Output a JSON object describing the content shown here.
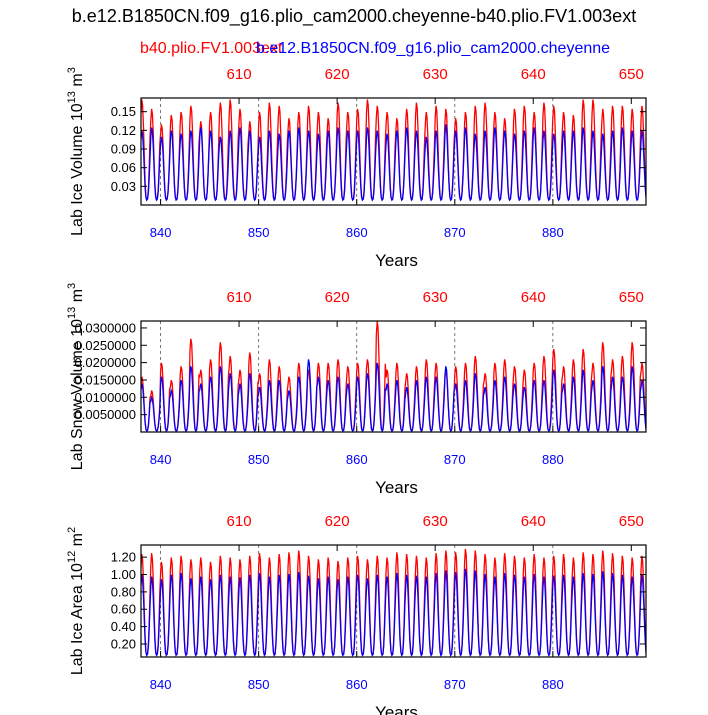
{
  "figure": {
    "title": "b.e12.B1850CN.f09_g16.plio_cam2000.cheyenne-b40.plio.FV1.003ext",
    "legend_red": "b40.plio.FV1.003ext",
    "legend_blue": "b.e12.B1850CN.f09_g16.plio_cam2000.cheyenne"
  },
  "colors": {
    "series_red": "#ff0000",
    "series_blue": "#0000ff",
    "axis": "#000000",
    "dashed_lines": "#555555"
  },
  "chart_data": [
    {
      "type": "line",
      "ylabel": "Lab Ice Volume 10",
      "ylabel_exp": "13",
      "ylabel_unit": " m",
      "ylabel_unit_exp": "3",
      "xlabel": "Years",
      "ylim": [
        0.0,
        0.172
      ],
      "yticks": [
        "0.03",
        "0.06",
        "0.09",
        "0.12",
        "0.15"
      ],
      "ytick_values": [
        0.03,
        0.06,
        0.09,
        0.12,
        0.15
      ],
      "bottom_axis": {
        "range": [
          838,
          889.5
        ],
        "ticks": [
          840,
          850,
          860,
          870,
          880
        ],
        "labels": [
          "840",
          "850",
          "860",
          "870",
          "880"
        ]
      },
      "top_axis": {
        "range": [
          600,
          651.5
        ],
        "ticks": [
          610,
          620,
          630,
          640,
          650
        ],
        "labels": [
          "610",
          "620",
          "630",
          "640",
          "650"
        ]
      },
      "dashed_lines_at": [
        840,
        850,
        860,
        870,
        880
      ],
      "series": [
        {
          "name": "b40.plio.FV1.003ext",
          "color": "#ff0000",
          "start_year": 600,
          "minimum": 0.008,
          "annual_peaks": [
            0.17,
            0.155,
            0.13,
            0.145,
            0.15,
            0.16,
            0.135,
            0.15,
            0.165,
            0.17,
            0.155,
            0.135,
            0.15,
            0.165,
            0.16,
            0.14,
            0.15,
            0.16,
            0.15,
            0.14,
            0.165,
            0.15,
            0.155,
            0.17,
            0.16,
            0.15,
            0.14,
            0.155,
            0.165,
            0.15,
            0.16,
            0.155,
            0.14,
            0.15,
            0.16,
            0.165,
            0.15,
            0.14,
            0.155,
            0.16,
            0.15,
            0.165,
            0.16,
            0.15,
            0.145,
            0.17,
            0.17,
            0.155,
            0.16,
            0.16,
            0.155,
            0.16
          ]
        },
        {
          "name": "b.e12.B1850CN.f09_g16.plio_cam2000.cheyenne",
          "color": "#0000ff",
          "start_year": 838,
          "minimum": 0.008,
          "annual_peaks": [
            0.12,
            0.125,
            0.11,
            0.12,
            0.115,
            0.12,
            0.125,
            0.12,
            0.11,
            0.12,
            0.125,
            0.12,
            0.11,
            0.12,
            0.115,
            0.12,
            0.125,
            0.12,
            0.115,
            0.12,
            0.125,
            0.12,
            0.12,
            0.125,
            0.12,
            0.115,
            0.12,
            0.125,
            0.12,
            0.11,
            0.12,
            0.13,
            0.12,
            0.125,
            0.115,
            0.12,
            0.125,
            0.12,
            0.115,
            0.12,
            0.125,
            0.12,
            0.115,
            0.12,
            0.12,
            0.125,
            0.12,
            0.115,
            0.12,
            0.125,
            0.12,
            0.12
          ]
        }
      ]
    },
    {
      "type": "line",
      "ylabel": "Lab Snow Volume 10",
      "ylabel_exp": "13",
      "ylabel_unit": " m",
      "ylabel_unit_exp": "3",
      "xlabel": "Years",
      "ylim": [
        0.0,
        0.032
      ],
      "yticks": [
        "0.0050000",
        "0.0100000",
        "0.0150000",
        "0.0200000",
        "0.0250000",
        "0.0300000"
      ],
      "ytick_values": [
        0.005,
        0.01,
        0.015,
        0.02,
        0.025,
        0.03
      ],
      "bottom_axis": {
        "range": [
          838,
          889.5
        ],
        "ticks": [
          840,
          850,
          860,
          870,
          880
        ],
        "labels": [
          "840",
          "850",
          "860",
          "870",
          "880"
        ]
      },
      "top_axis": {
        "range": [
          600,
          651.5
        ],
        "ticks": [
          610,
          620,
          630,
          640,
          650
        ],
        "labels": [
          "610",
          "620",
          "630",
          "640",
          "650"
        ]
      },
      "dashed_lines_at": [
        840,
        850,
        860,
        870,
        880
      ],
      "series": [
        {
          "name": "b40.plio.FV1.003ext",
          "color": "#ff0000",
          "start_year": 600,
          "minimum": 0.0003,
          "annual_peaks": [
            0.016,
            0.012,
            0.02,
            0.015,
            0.019,
            0.027,
            0.018,
            0.021,
            0.026,
            0.022,
            0.018,
            0.023,
            0.017,
            0.021,
            0.019,
            0.016,
            0.02,
            0.018,
            0.02,
            0.02,
            0.021,
            0.019,
            0.02,
            0.021,
            0.032,
            0.018,
            0.02,
            0.017,
            0.019,
            0.021,
            0.02,
            0.018,
            0.019,
            0.02,
            0.022,
            0.017,
            0.02,
            0.021,
            0.019,
            0.018,
            0.02,
            0.022,
            0.024,
            0.019,
            0.021,
            0.024,
            0.02,
            0.026,
            0.021,
            0.022,
            0.026,
            0.02
          ]
        },
        {
          "name": "b.e12.B1850CN.f09_g16.plio_cam2000.cheyenne",
          "color": "#0000ff",
          "start_year": 838,
          "minimum": 0.0003,
          "annual_peaks": [
            0.014,
            0.01,
            0.016,
            0.012,
            0.015,
            0.019,
            0.014,
            0.016,
            0.019,
            0.017,
            0.014,
            0.017,
            0.013,
            0.015,
            0.015,
            0.012,
            0.016,
            0.021,
            0.016,
            0.015,
            0.016,
            0.014,
            0.016,
            0.017,
            0.02,
            0.014,
            0.015,
            0.013,
            0.015,
            0.016,
            0.016,
            0.019,
            0.014,
            0.015,
            0.017,
            0.013,
            0.015,
            0.016,
            0.014,
            0.013,
            0.015,
            0.015,
            0.018,
            0.014,
            0.016,
            0.018,
            0.015,
            0.019,
            0.016,
            0.016,
            0.019,
            0.015
          ]
        }
      ]
    },
    {
      "type": "line",
      "ylabel": "Lab Ice Area 10",
      "ylabel_exp": "12",
      "ylabel_unit": " m",
      "ylabel_unit_exp": "2",
      "xlabel": "Years",
      "ylim": [
        0.05,
        1.34
      ],
      "yticks": [
        "0.20",
        "0.40",
        "0.60",
        "0.80",
        "1.00",
        "1.20"
      ],
      "ytick_values": [
        0.2,
        0.4,
        0.6,
        0.8,
        1.0,
        1.2
      ],
      "bottom_axis": {
        "range": [
          838,
          889.5
        ],
        "ticks": [
          840,
          850,
          860,
          870,
          880
        ],
        "labels": [
          "840",
          "850",
          "860",
          "870",
          "880"
        ]
      },
      "top_axis": {
        "range": [
          600,
          651.5
        ],
        "ticks": [
          610,
          620,
          630,
          640,
          650
        ],
        "labels": [
          "610",
          "620",
          "630",
          "640",
          "650"
        ]
      },
      "dashed_lines_at": [
        840,
        850,
        860,
        870,
        880
      ],
      "series": [
        {
          "name": "b40.plio.FV1.003ext",
          "color": "#ff0000",
          "start_year": 600,
          "minimum": 0.07,
          "annual_peaks": [
            1.24,
            1.25,
            1.15,
            1.2,
            1.22,
            1.18,
            1.2,
            1.15,
            1.22,
            1.2,
            1.18,
            1.22,
            1.25,
            1.2,
            1.24,
            1.26,
            1.28,
            1.22,
            1.18,
            1.2,
            1.16,
            1.2,
            1.22,
            1.18,
            1.22,
            1.2,
            1.26,
            1.24,
            1.22,
            1.2,
            1.25,
            1.28,
            1.26,
            1.3,
            1.28,
            1.24,
            1.2,
            1.25,
            1.22,
            1.2,
            1.24,
            1.2,
            1.22,
            1.24,
            1.2,
            1.26,
            1.24,
            1.28,
            1.25,
            1.22,
            1.2,
            1.22
          ]
        },
        {
          "name": "b.e12.B1850CN.f09_g16.plio_cam2000.cheyenne",
          "color": "#0000ff",
          "start_year": 838,
          "minimum": 0.07,
          "annual_peaks": [
            1.0,
            0.98,
            0.95,
            1.0,
            1.02,
            0.96,
            0.98,
            0.95,
            1.0,
            0.98,
            0.97,
            1.0,
            1.02,
            0.98,
            1.0,
            1.01,
            1.03,
            0.99,
            0.96,
            0.98,
            0.95,
            0.98,
            1.0,
            0.96,
            1.0,
            0.98,
            1.02,
            1.0,
            0.99,
            0.98,
            1.02,
            1.05,
            1.03,
            1.07,
            1.05,
            1.01,
            0.98,
            1.02,
            1.0,
            0.98,
            1.01,
            0.98,
            0.99,
            1.0,
            0.98,
            1.02,
            1.01,
            1.04,
            1.02,
            1.0,
            0.98,
            1.0
          ]
        }
      ]
    }
  ]
}
